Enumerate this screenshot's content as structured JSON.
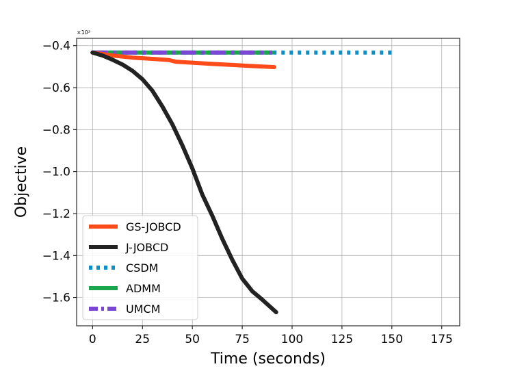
{
  "chart_data": {
    "type": "line",
    "title": "",
    "xlabel": "Time (seconds)",
    "ylabel": "Objective",
    "y_multiplier": "×10³",
    "xlim": [
      -8,
      184
    ],
    "ylim": [
      -1.735,
      -0.365
    ],
    "x_ticks": [
      0,
      25,
      50,
      75,
      100,
      125,
      150,
      175
    ],
    "x_tick_labels": [
      "0",
      "25",
      "50",
      "75",
      "100",
      "125",
      "150",
      "175"
    ],
    "y_ticks": [
      -0.4,
      -0.6,
      -0.8,
      -1.0,
      -1.2,
      -1.4,
      -1.6
    ],
    "y_tick_labels": [
      "−0.4",
      "−0.6",
      "−0.8",
      "−1.0",
      "−1.2",
      "−1.4",
      "−1.6"
    ],
    "grid": true,
    "legend_position": "lower-left",
    "series": [
      {
        "name": "GS-JOBCD",
        "color": "#ff4a1a",
        "dash": "solid",
        "x": [
          0,
          10,
          20,
          30,
          38,
          42,
          50,
          60,
          70,
          80,
          91
        ],
        "y": [
          -0.433,
          -0.447,
          -0.457,
          -0.463,
          -0.468,
          -0.477,
          -0.481,
          -0.487,
          -0.492,
          -0.497,
          -0.502
        ]
      },
      {
        "name": "J-JOBCD",
        "color": "#222222",
        "dash": "solid",
        "x": [
          0,
          5,
          10,
          15,
          20,
          25,
          30,
          35,
          40,
          45,
          50,
          55,
          60,
          65,
          70,
          75,
          80,
          85,
          92
        ],
        "y": [
          -0.433,
          -0.447,
          -0.467,
          -0.49,
          -0.52,
          -0.56,
          -0.615,
          -0.69,
          -0.775,
          -0.875,
          -0.985,
          -1.11,
          -1.21,
          -1.32,
          -1.42,
          -1.51,
          -1.57,
          -1.61,
          -1.67
        ]
      },
      {
        "name": "CSDM",
        "color": "#0a90c8",
        "dash": "dotted",
        "x": [
          0,
          150
        ],
        "y": [
          -0.433,
          -0.433
        ]
      },
      {
        "name": "ADMM",
        "color": "#1aa64a",
        "dash": "solid",
        "x": [
          0,
          90
        ],
        "y": [
          -0.433,
          -0.433
        ]
      },
      {
        "name": "UMCM",
        "color": "#7b45d6",
        "dash": "dashdot",
        "x": [
          0,
          90
        ],
        "y": [
          -0.433,
          -0.433
        ]
      }
    ]
  }
}
